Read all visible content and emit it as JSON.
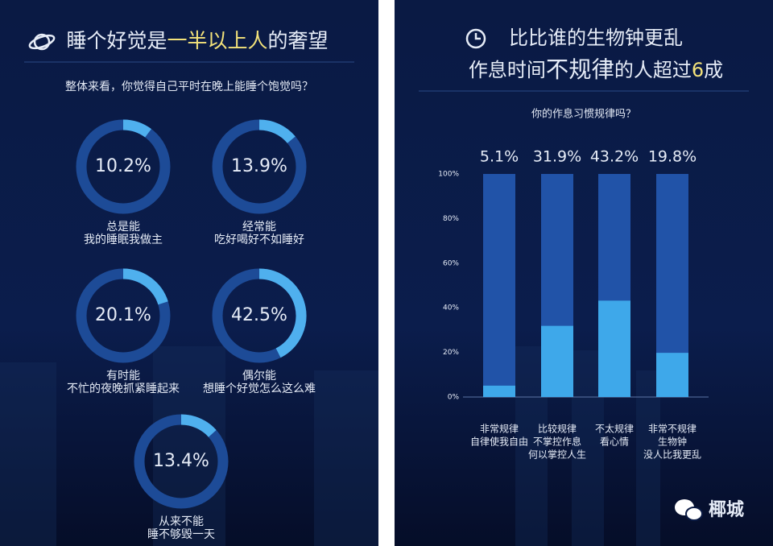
{
  "chart_data": [
    {
      "type": "donut",
      "title_parts": [
        {
          "text": "睡个好觉是"
        },
        {
          "text": "一半以上人",
          "highlight": true
        },
        {
          "text": "的奢望"
        }
      ],
      "question": "整体来看，你觉得自己平时在晚上能睡个饱觉吗？",
      "labels": [
        "总是能",
        "经常能",
        "有时能",
        "偶尔能",
        "从来不能"
      ],
      "captions": [
        "我的睡眠我做主",
        "吃好喝好不如睡好",
        "不忙的夜晚抓紧睡起来",
        "想睡个好觉怎么这么难",
        "睡不够毁一天"
      ],
      "values": [
        10.2,
        13.9,
        20.1,
        42.5,
        13.4
      ],
      "value_labels": [
        "10.2%",
        "13.9%",
        "20.1%",
        "42.5%",
        "13.4%"
      ],
      "color": "#4fb0ee",
      "track_color": "#1d4b97"
    },
    {
      "type": "bar",
      "title_lines": [
        [
          {
            "text": "比比谁的生物钟更乱"
          }
        ],
        [
          {
            "text": "作息时间"
          },
          {
            "text": "不规律",
            "big": true
          },
          {
            "text": "的人超过"
          },
          {
            "text": "6",
            "highlight": true
          },
          {
            "text": "成"
          }
        ]
      ],
      "question": "你的作息习惯规律吗？",
      "categories": [
        "非常规律",
        "比较规律",
        "不太规律",
        "非常不规律"
      ],
      "category_notes": [
        [
          "自律使我自由"
        ],
        [
          "不掌控作息",
          "何以掌控人生"
        ],
        [
          "看心情"
        ],
        [
          "生物钟",
          "没人比我更乱"
        ]
      ],
      "values": [
        5.1,
        31.9,
        43.2,
        19.8
      ],
      "value_labels": [
        "5.1%",
        "31.9%",
        "43.2%",
        "19.8%"
      ],
      "ylim": [
        0,
        100
      ],
      "yticks": [
        {
          "value": 0,
          "label": "0%"
        },
        {
          "value": 20,
          "label": "20%"
        },
        {
          "value": 40,
          "label": "40%"
        },
        {
          "value": 60,
          "label": "60%"
        },
        {
          "value": 80,
          "label": "80%"
        },
        {
          "value": 100,
          "label": "100%"
        }
      ],
      "color": "#3ea8ea",
      "track_color": "#2153a8"
    }
  ],
  "watermark": "椰城"
}
